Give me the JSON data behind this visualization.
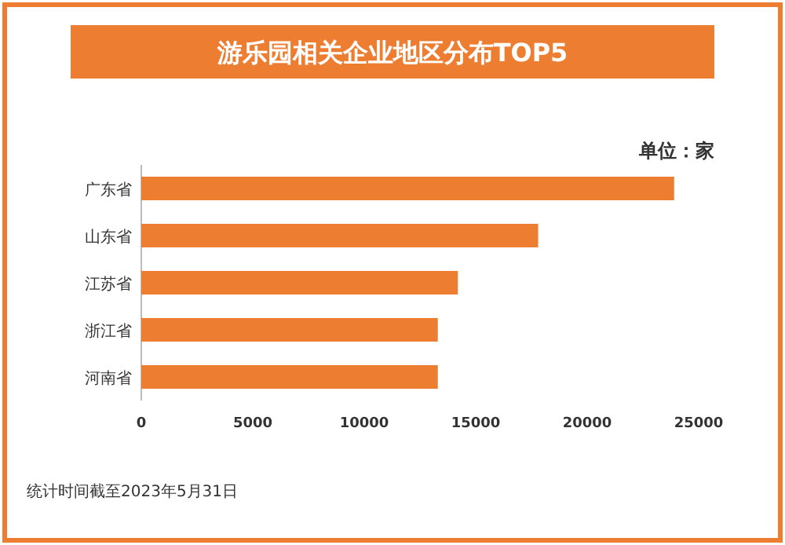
{
  "chart_data": {
    "type": "bar",
    "orientation": "horizontal",
    "title": "游乐园相关企业地区分布TOP5",
    "subtitle": "单位：家",
    "categories": [
      "广东省",
      "山东省",
      "江苏省",
      "浙江省",
      "河南省"
    ],
    "values": [
      23900,
      17800,
      14200,
      13300,
      13300
    ],
    "color": "#ed7d31",
    "xlim": [
      0,
      25000
    ],
    "xticks": [
      0,
      5000,
      10000,
      15000,
      20000,
      25000
    ],
    "annotations": [
      "统计时间截至2023年5月31日"
    ]
  }
}
